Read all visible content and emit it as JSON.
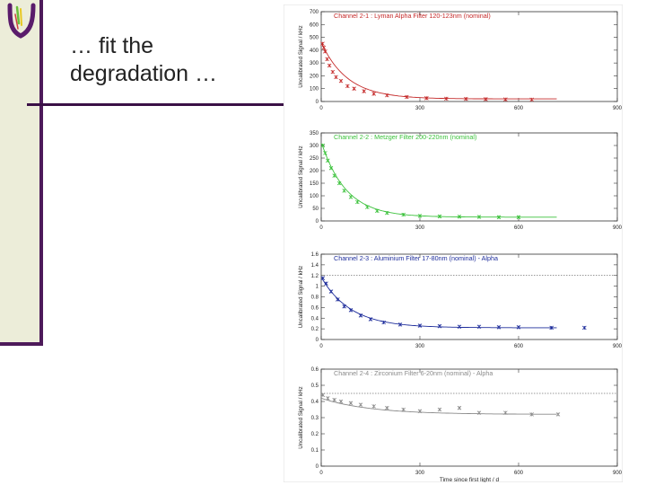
{
  "slide": {
    "title_line1": "… fit the",
    "title_line2": "degradation …",
    "accent_color": "#4d1a5a",
    "sidebar_color": "#ecedd9"
  },
  "chart_data": [
    {
      "type": "scatter",
      "title": "Channel 2-1 : Lyman Alpha Filter 120-123nm (nominal)",
      "ylabel": "Uncalibrated Signal / kHz",
      "xlabel": "",
      "color": "#c42828",
      "xlim": [
        0,
        900
      ],
      "ylim": [
        0,
        700
      ],
      "x_ticks": [
        0,
        300,
        600,
        900
      ],
      "y_ticks": [
        0,
        100,
        200,
        300,
        400,
        500,
        600,
        700
      ],
      "reference_line": null,
      "fit": {
        "model": "exponential",
        "offset": 20,
        "amplitude": 440,
        "tau": 80
      },
      "points": [
        {
          "x": 4,
          "y": 450
        },
        {
          "x": 8,
          "y": 420
        },
        {
          "x": 12,
          "y": 390
        },
        {
          "x": 18,
          "y": 330
        },
        {
          "x": 25,
          "y": 280
        },
        {
          "x": 35,
          "y": 230
        },
        {
          "x": 45,
          "y": 190
        },
        {
          "x": 60,
          "y": 160
        },
        {
          "x": 80,
          "y": 120
        },
        {
          "x": 100,
          "y": 100
        },
        {
          "x": 130,
          "y": 80
        },
        {
          "x": 160,
          "y": 60
        },
        {
          "x": 200,
          "y": 48
        },
        {
          "x": 260,
          "y": 35
        },
        {
          "x": 320,
          "y": 26
        },
        {
          "x": 380,
          "y": 22
        },
        {
          "x": 440,
          "y": 20
        },
        {
          "x": 500,
          "y": 18
        },
        {
          "x": 560,
          "y": 16
        },
        {
          "x": 640,
          "y": 15
        }
      ]
    },
    {
      "type": "scatter",
      "title": "Channel 2-2 : Metzger Filter 200-220nm (nominal)",
      "ylabel": "Uncalibrated Signal / kHz",
      "xlabel": "",
      "color": "#3cc23c",
      "xlim": [
        0,
        900
      ],
      "ylim": [
        0,
        350
      ],
      "x_ticks": [
        0,
        300,
        600,
        900
      ],
      "y_ticks": [
        0,
        50,
        100,
        150,
        200,
        250,
        300,
        350
      ],
      "reference_line": null,
      "fit": {
        "model": "exponential",
        "offset": 15,
        "amplitude": 300,
        "tau": 75
      },
      "points": [
        {
          "x": 5,
          "y": 300
        },
        {
          "x": 12,
          "y": 270
        },
        {
          "x": 20,
          "y": 240
        },
        {
          "x": 30,
          "y": 210
        },
        {
          "x": 40,
          "y": 180
        },
        {
          "x": 55,
          "y": 150
        },
        {
          "x": 70,
          "y": 120
        },
        {
          "x": 90,
          "y": 95
        },
        {
          "x": 110,
          "y": 75
        },
        {
          "x": 140,
          "y": 55
        },
        {
          "x": 170,
          "y": 40
        },
        {
          "x": 200,
          "y": 32
        },
        {
          "x": 250,
          "y": 25
        },
        {
          "x": 300,
          "y": 20
        },
        {
          "x": 360,
          "y": 18
        },
        {
          "x": 420,
          "y": 17
        },
        {
          "x": 480,
          "y": 16
        },
        {
          "x": 540,
          "y": 15
        },
        {
          "x": 600,
          "y": 15
        }
      ]
    },
    {
      "type": "scatter",
      "title": "Channel 2-3 : Aluminium Filter 17-80nm (nominal) - Alpha",
      "ylabel": "Uncalibrated Signal / kHz",
      "xlabel": "",
      "color": "#1e2d9b",
      "xlim": [
        0,
        900
      ],
      "ylim": [
        0,
        1.6
      ],
      "x_ticks": [
        0,
        300,
        600,
        900
      ],
      "y_ticks": [
        0,
        0.2,
        0.4,
        0.6,
        0.8,
        1.0,
        1.2,
        1.4,
        1.6
      ],
      "reference_line": 1.2,
      "fit": {
        "model": "exponential",
        "offset": 0.22,
        "amplitude": 0.95,
        "tau": 90
      },
      "points": [
        {
          "x": 5,
          "y": 1.15
        },
        {
          "x": 15,
          "y": 1.05
        },
        {
          "x": 30,
          "y": 0.9
        },
        {
          "x": 50,
          "y": 0.75
        },
        {
          "x": 70,
          "y": 0.62
        },
        {
          "x": 90,
          "y": 0.55
        },
        {
          "x": 120,
          "y": 0.45
        },
        {
          "x": 150,
          "y": 0.38
        },
        {
          "x": 190,
          "y": 0.32
        },
        {
          "x": 240,
          "y": 0.28
        },
        {
          "x": 300,
          "y": 0.26
        },
        {
          "x": 360,
          "y": 0.25
        },
        {
          "x": 420,
          "y": 0.24
        },
        {
          "x": 480,
          "y": 0.24
        },
        {
          "x": 540,
          "y": 0.23
        },
        {
          "x": 600,
          "y": 0.23
        },
        {
          "x": 700,
          "y": 0.22
        },
        {
          "x": 800,
          "y": 0.22
        }
      ]
    },
    {
      "type": "scatter",
      "title": "Channel 2-4 : Zirconium Filter 6-20nm (nominal) - Alpha",
      "ylabel": "Uncalibrated Signal / kHz",
      "xlabel": "Time since first light / d",
      "color": "#8a8a8a",
      "xlim": [
        0,
        900
      ],
      "ylim": [
        0,
        0.6
      ],
      "x_ticks": [
        0,
        300,
        600,
        900
      ],
      "y_ticks": [
        0,
        0.1,
        0.2,
        0.3,
        0.4,
        0.5,
        0.6
      ],
      "reference_line": 0.45,
      "fit": {
        "model": "exponential",
        "offset": 0.32,
        "amplitude": 0.1,
        "tau": 150
      },
      "points": [
        {
          "x": 5,
          "y": 0.44
        },
        {
          "x": 20,
          "y": 0.42
        },
        {
          "x": 40,
          "y": 0.41
        },
        {
          "x": 60,
          "y": 0.4
        },
        {
          "x": 90,
          "y": 0.39
        },
        {
          "x": 120,
          "y": 0.38
        },
        {
          "x": 160,
          "y": 0.37
        },
        {
          "x": 200,
          "y": 0.36
        },
        {
          "x": 250,
          "y": 0.35
        },
        {
          "x": 300,
          "y": 0.34
        },
        {
          "x": 360,
          "y": 0.35
        },
        {
          "x": 420,
          "y": 0.36
        },
        {
          "x": 480,
          "y": 0.33
        },
        {
          "x": 560,
          "y": 0.33
        },
        {
          "x": 640,
          "y": 0.32
        },
        {
          "x": 720,
          "y": 0.32
        }
      ]
    }
  ]
}
